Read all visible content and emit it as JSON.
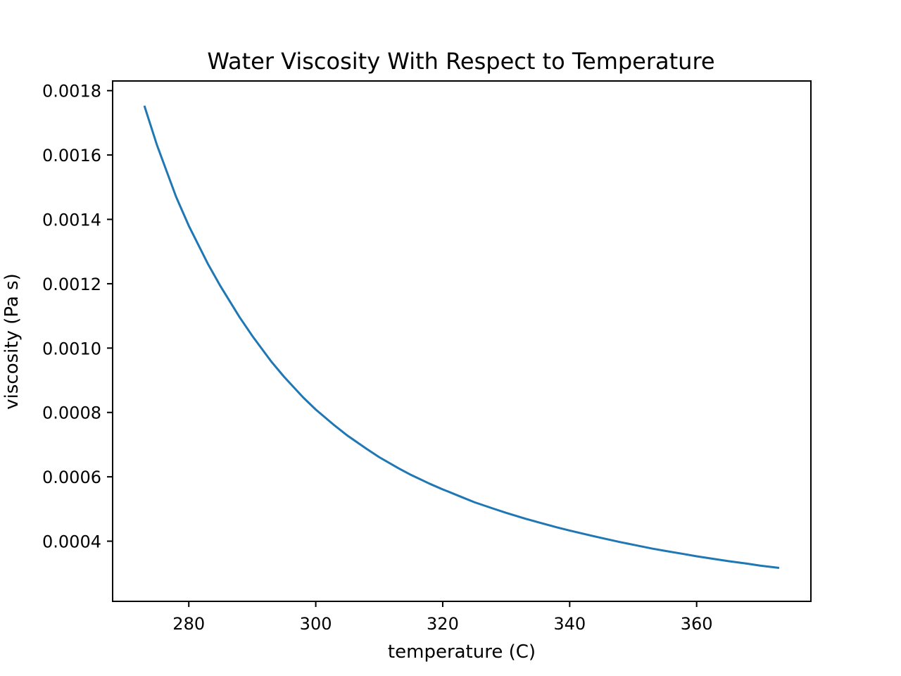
{
  "chart_data": {
    "type": "line",
    "title": "Water Viscosity With Respect to Temperature",
    "xlabel": "temperature (C)",
    "ylabel": "viscosity (Pa s)",
    "xlim": [
      268,
      378
    ],
    "ylim": [
      0.000213,
      0.00183
    ],
    "xticks": [
      280,
      300,
      320,
      340,
      360
    ],
    "xtick_labels": [
      "280",
      "300",
      "320",
      "340",
      "360"
    ],
    "yticks": [
      0.0004,
      0.0006,
      0.0008,
      0.001,
      0.0012,
      0.0014,
      0.0016,
      0.0018
    ],
    "ytick_labels": [
      "0.0004",
      "0.0006",
      "0.0008",
      "0.0010",
      "0.0012",
      "0.0014",
      "0.0016",
      "0.0018"
    ],
    "grid": false,
    "series": [
      {
        "color": "#1f77b4",
        "x": [
          273,
          275,
          278,
          280,
          283,
          285,
          288,
          290,
          293,
          295,
          298,
          300,
          303,
          305,
          308,
          310,
          313,
          315,
          318,
          320,
          323,
          325,
          328,
          330,
          333,
          335,
          338,
          340,
          343,
          345,
          348,
          350,
          353,
          355,
          358,
          360,
          363,
          365,
          368,
          370,
          373
        ],
        "y": [
          0.001753,
          0.00163,
          0.00147,
          0.00138,
          0.001262,
          0.001192,
          0.001096,
          0.001038,
          0.000958,
          0.000911,
          0.000847,
          0.000809,
          0.000759,
          0.000728,
          0.000687,
          0.000661,
          0.000627,
          0.000606,
          0.000578,
          0.000561,
          0.000537,
          0.000521,
          0.000501,
          0.000488,
          0.00047,
          0.000459,
          0.000443,
          0.000433,
          0.000419,
          0.00041,
          0.000397,
          0.000389,
          0.000377,
          0.00037,
          0.00036,
          0.000353,
          0.000344,
          0.000338,
          0.00033,
          0.000324,
          0.000317
        ]
      }
    ]
  }
}
